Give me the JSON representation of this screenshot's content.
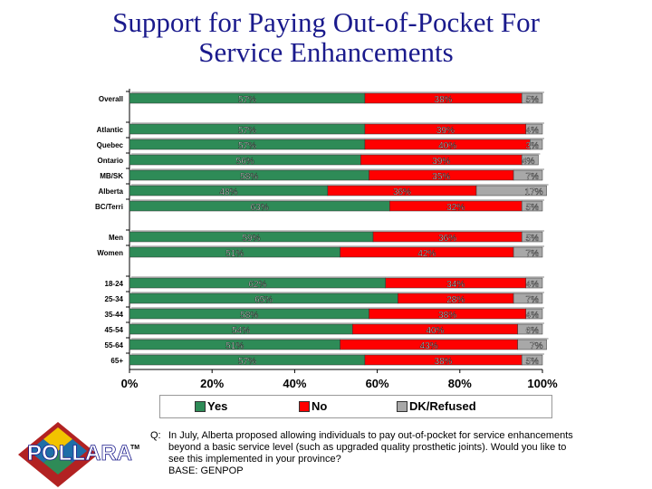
{
  "title_line1": "Support for Paying Out-of-Pocket For",
  "title_line2": "Service Enhancements",
  "colors": {
    "yes": "#2e8b57",
    "no": "#ff0000",
    "dk": "#a8a8a8",
    "title": "#1a1a8c"
  },
  "chart_data": {
    "type": "bar",
    "orientation": "horizontal",
    "stacked": true,
    "series_names": [
      "Yes",
      "No",
      "DK/Refused"
    ],
    "categories": [
      "Overall",
      "Atlantic",
      "Quebec",
      "Ontario",
      "MB/SK",
      "Alberta",
      "BC/Terri",
      "Men",
      "Women",
      "18-24",
      "25-34",
      "35-44",
      "45-54",
      "55-64",
      "65+"
    ],
    "groups": [
      [
        0
      ],
      [
        1,
        2,
        3,
        4,
        5,
        6
      ],
      [
        7,
        8
      ],
      [
        9,
        10,
        11,
        12,
        13,
        14
      ]
    ],
    "series": [
      {
        "name": "Yes",
        "values": [
          57,
          57,
          57,
          56,
          58,
          48,
          63,
          59,
          51,
          62,
          65,
          58,
          54,
          51,
          57
        ]
      },
      {
        "name": "No",
        "values": [
          38,
          39,
          40,
          39,
          35,
          36,
          32,
          36,
          42,
          34,
          28,
          38,
          40,
          43,
          38
        ]
      },
      {
        "name": "DK/Refused",
        "values": [
          5,
          4,
          3,
          4,
          7,
          17,
          5,
          5,
          7,
          4,
          7,
          4,
          6,
          7,
          5
        ]
      }
    ],
    "x_ticks": [
      "0%",
      "20%",
      "40%",
      "60%",
      "80%",
      "100%"
    ],
    "xlim": [
      0,
      100
    ]
  },
  "legend": {
    "yes": "Yes",
    "no": "No",
    "dk": "DK/Refused"
  },
  "note": {
    "q_label": "Q:",
    "question": "In July, Alberta proposed allowing individuals to pay out-of-pocket for service enhancements beyond a basic service level (such as upgraded quality prosthetic joints).  Would you like to see this implemented in your province?",
    "base": "BASE: GENPOP"
  },
  "logo_text": "POLLARA",
  "logo_tm": "TM"
}
